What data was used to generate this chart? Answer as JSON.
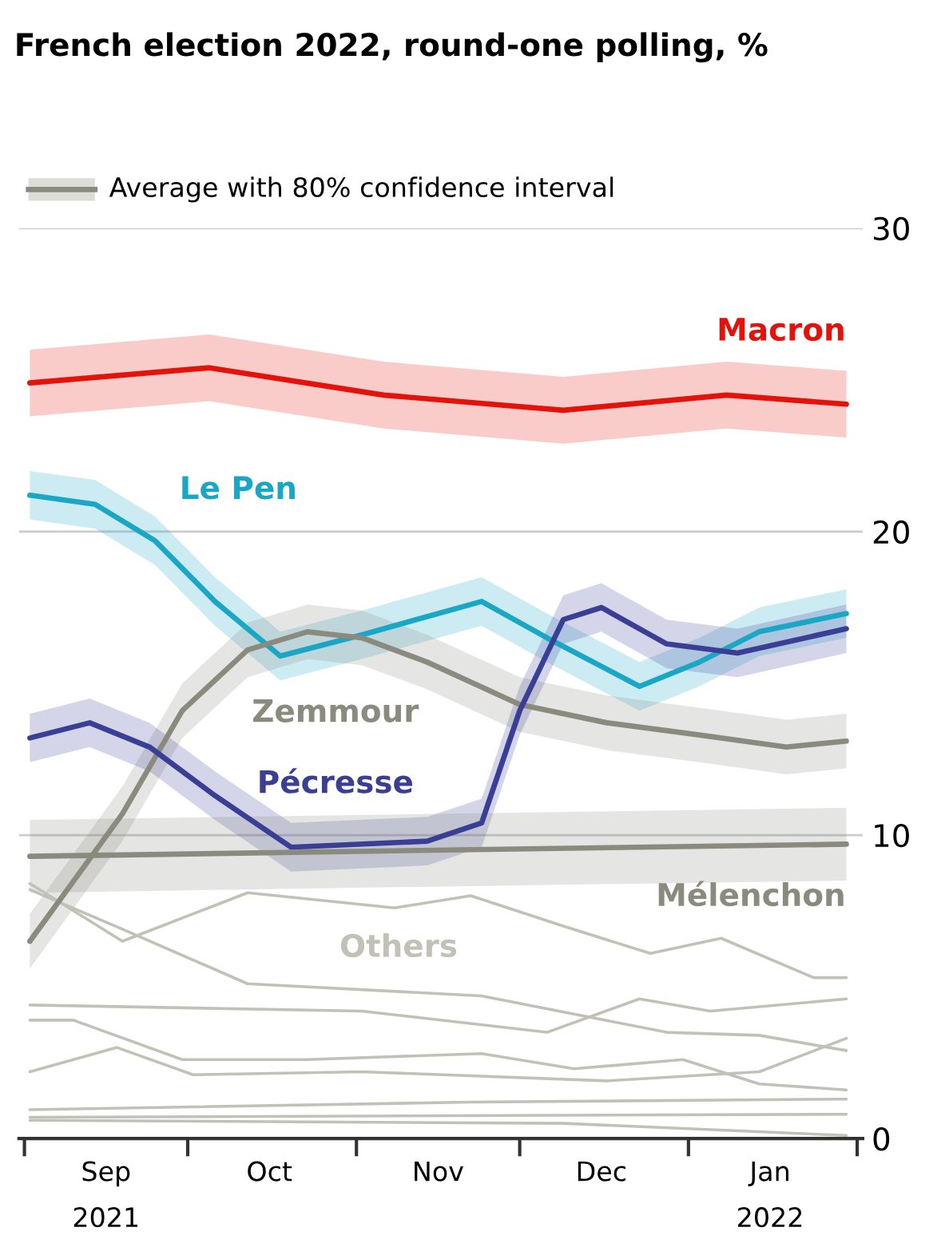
{
  "chart_data": {
    "type": "line",
    "title": "French election 2022, round-one polling, %",
    "legend_title": "Average with 80% confidence interval",
    "xlim": [
      "2021-08-31",
      "2022-02-02"
    ],
    "xticks": [
      {
        "value": "2021-09-01",
        "label": null
      },
      {
        "value": "2021-09-16",
        "label": "Sep\n2021"
      },
      {
        "value": "2021-10-01",
        "label": null
      },
      {
        "value": "2021-10-16",
        "label": "Oct"
      },
      {
        "value": "2021-11-01",
        "label": null
      },
      {
        "value": "2021-11-16",
        "label": "Nov"
      },
      {
        "value": "2021-12-01",
        "label": null
      },
      {
        "value": "2021-12-16",
        "label": "Dec"
      },
      {
        "value": "2022-01-01",
        "label": null
      },
      {
        "value": "2022-01-16",
        "label": "Jan\n2022"
      },
      {
        "value": "2022-02-01",
        "label": null
      }
    ],
    "ylim": [
      0,
      30
    ],
    "yticks": [
      0,
      10,
      20,
      30
    ],
    "grid": "y",
    "line_style": "solid",
    "marker": "none",
    "series": [
      {
        "name": "Macron",
        "color": "#e3120b",
        "x": [
          "2021-09-02",
          "2021-10-05",
          "2021-11-06",
          "2021-12-09",
          "2022-01-08",
          "2022-01-30"
        ],
        "values": [
          24.9,
          25.4,
          24.5,
          24.0,
          24.5,
          24.2
        ],
        "lower": [
          23.8,
          24.3,
          23.4,
          22.9,
          23.4,
          23.1
        ],
        "upper": [
          26.0,
          26.5,
          25.6,
          25.1,
          25.6,
          25.3
        ]
      },
      {
        "name": "Le Pen",
        "color": "#1aa6c5",
        "x": [
          "2021-09-02",
          "2021-09-14",
          "2021-09-25",
          "2021-10-06",
          "2021-10-18",
          "2021-11-02",
          "2021-11-24",
          "2021-12-06",
          "2021-12-23",
          "2022-01-03",
          "2022-01-14",
          "2022-01-30"
        ],
        "values": [
          21.2,
          20.9,
          19.7,
          17.7,
          15.9,
          16.6,
          17.7,
          16.5,
          14.9,
          15.7,
          16.7,
          17.3
        ],
        "lower": [
          20.4,
          20.1,
          18.9,
          16.9,
          15.1,
          15.8,
          16.9,
          15.7,
          14.1,
          14.9,
          15.9,
          16.5
        ],
        "upper": [
          22.0,
          21.7,
          20.5,
          18.5,
          16.7,
          17.4,
          18.5,
          17.3,
          15.7,
          16.5,
          17.5,
          18.1
        ]
      },
      {
        "name": "Zemmour",
        "color": "#8a8a7e",
        "x": [
          "2021-09-02",
          "2021-09-19",
          "2021-09-30",
          "2021-10-12",
          "2021-10-23",
          "2021-11-02",
          "2021-11-14",
          "2021-12-01",
          "2021-12-17",
          "2022-01-03",
          "2022-01-19",
          "2022-01-30"
        ],
        "values": [
          6.5,
          10.7,
          14.1,
          16.1,
          16.7,
          16.5,
          15.7,
          14.3,
          13.7,
          13.3,
          12.9,
          13.1
        ],
        "lower": [
          5.6,
          9.8,
          13.2,
          15.2,
          15.8,
          15.6,
          14.8,
          13.4,
          12.8,
          12.4,
          12.0,
          12.2
        ],
        "upper": [
          7.4,
          11.6,
          15.0,
          17.0,
          17.6,
          17.4,
          16.6,
          15.2,
          14.6,
          14.2,
          13.8,
          14.0
        ]
      },
      {
        "name": "Pécresse",
        "color": "#3a3f95",
        "x": [
          "2021-09-02",
          "2021-09-13",
          "2021-09-24",
          "2021-10-06",
          "2021-10-20",
          "2021-11-14",
          "2021-11-24",
          "2021-12-01",
          "2021-12-09",
          "2021-12-16",
          "2021-12-28",
          "2022-01-10",
          "2022-01-30"
        ],
        "values": [
          13.2,
          13.7,
          12.9,
          11.3,
          9.6,
          9.8,
          10.4,
          14.1,
          17.1,
          17.5,
          16.3,
          16.0,
          16.8
        ],
        "lower": [
          12.4,
          12.9,
          12.1,
          10.5,
          8.8,
          9.0,
          9.6,
          13.3,
          16.3,
          16.7,
          15.5,
          15.2,
          16.0
        ],
        "upper": [
          14.0,
          14.5,
          13.7,
          12.1,
          10.4,
          10.6,
          11.2,
          14.9,
          17.9,
          18.3,
          17.1,
          16.8,
          17.6
        ]
      },
      {
        "name": "Mélenchon",
        "color": "#8a8a7e",
        "x": [
          "2021-09-02",
          "2021-11-15",
          "2022-01-30"
        ],
        "values": [
          9.3,
          9.5,
          9.7
        ],
        "lower": [
          8.1,
          8.3,
          8.5
        ],
        "upper": [
          10.5,
          10.7,
          10.9
        ]
      },
      {
        "name": "Others",
        "color": "#c2c1b8",
        "x": [
          "2021-09-02",
          "2021-09-19",
          "2021-10-12",
          "2021-11-08",
          "2021-11-22",
          "2021-12-09",
          "2021-12-25",
          "2022-01-07",
          "2022-01-24",
          "2022-01-30"
        ],
        "values": [
          8.4,
          6.5,
          8.1,
          7.6,
          8.0,
          7.0,
          6.1,
          6.6,
          5.3,
          5.3
        ]
      },
      {
        "color": "#c2c1b8",
        "x": [
          "2021-09-02",
          "2021-09-19",
          "2021-10-12",
          "2021-11-24",
          "2021-12-11",
          "2021-12-28",
          "2022-01-14",
          "2022-01-30"
        ],
        "values": [
          8.2,
          6.9,
          5.1,
          4.7,
          4.1,
          3.5,
          3.4,
          2.9
        ]
      },
      {
        "color": "#c2c1b8",
        "x": [
          "2021-09-02",
          "2021-11-02",
          "2021-12-06",
          "2021-12-23",
          "2022-01-05",
          "2022-01-30"
        ],
        "values": [
          4.4,
          4.2,
          3.5,
          4.6,
          4.2,
          4.6
        ]
      },
      {
        "color": "#c2c1b8",
        "x": [
          "2021-09-02",
          "2021-09-10",
          "2021-09-30",
          "2021-10-23",
          "2021-11-24",
          "2021-12-11",
          "2021-12-31",
          "2022-01-14",
          "2022-01-30"
        ],
        "values": [
          3.9,
          3.9,
          2.6,
          2.6,
          2.8,
          2.3,
          2.6,
          1.8,
          1.6
        ]
      },
      {
        "color": "#c2c1b8",
        "x": [
          "2021-09-02",
          "2021-09-18",
          "2021-10-02",
          "2021-11-02",
          "2021-12-17",
          "2022-01-14",
          "2022-01-30"
        ],
        "values": [
          2.2,
          3.0,
          2.1,
          2.2,
          1.9,
          2.2,
          3.3
        ]
      },
      {
        "color": "#c2c1b8",
        "x": [
          "2021-09-02",
          "2021-11-22",
          "2022-01-30"
        ],
        "values": [
          0.95,
          1.2,
          1.3
        ]
      },
      {
        "color": "#c2c1b8",
        "x": [
          "2021-09-02",
          "2022-01-30"
        ],
        "values": [
          0.7,
          0.8
        ]
      },
      {
        "color": "#c2c1b8",
        "x": [
          "2021-09-02",
          "2021-12-09",
          "2022-01-30"
        ],
        "values": [
          0.6,
          0.5,
          0.1
        ]
      }
    ]
  }
}
